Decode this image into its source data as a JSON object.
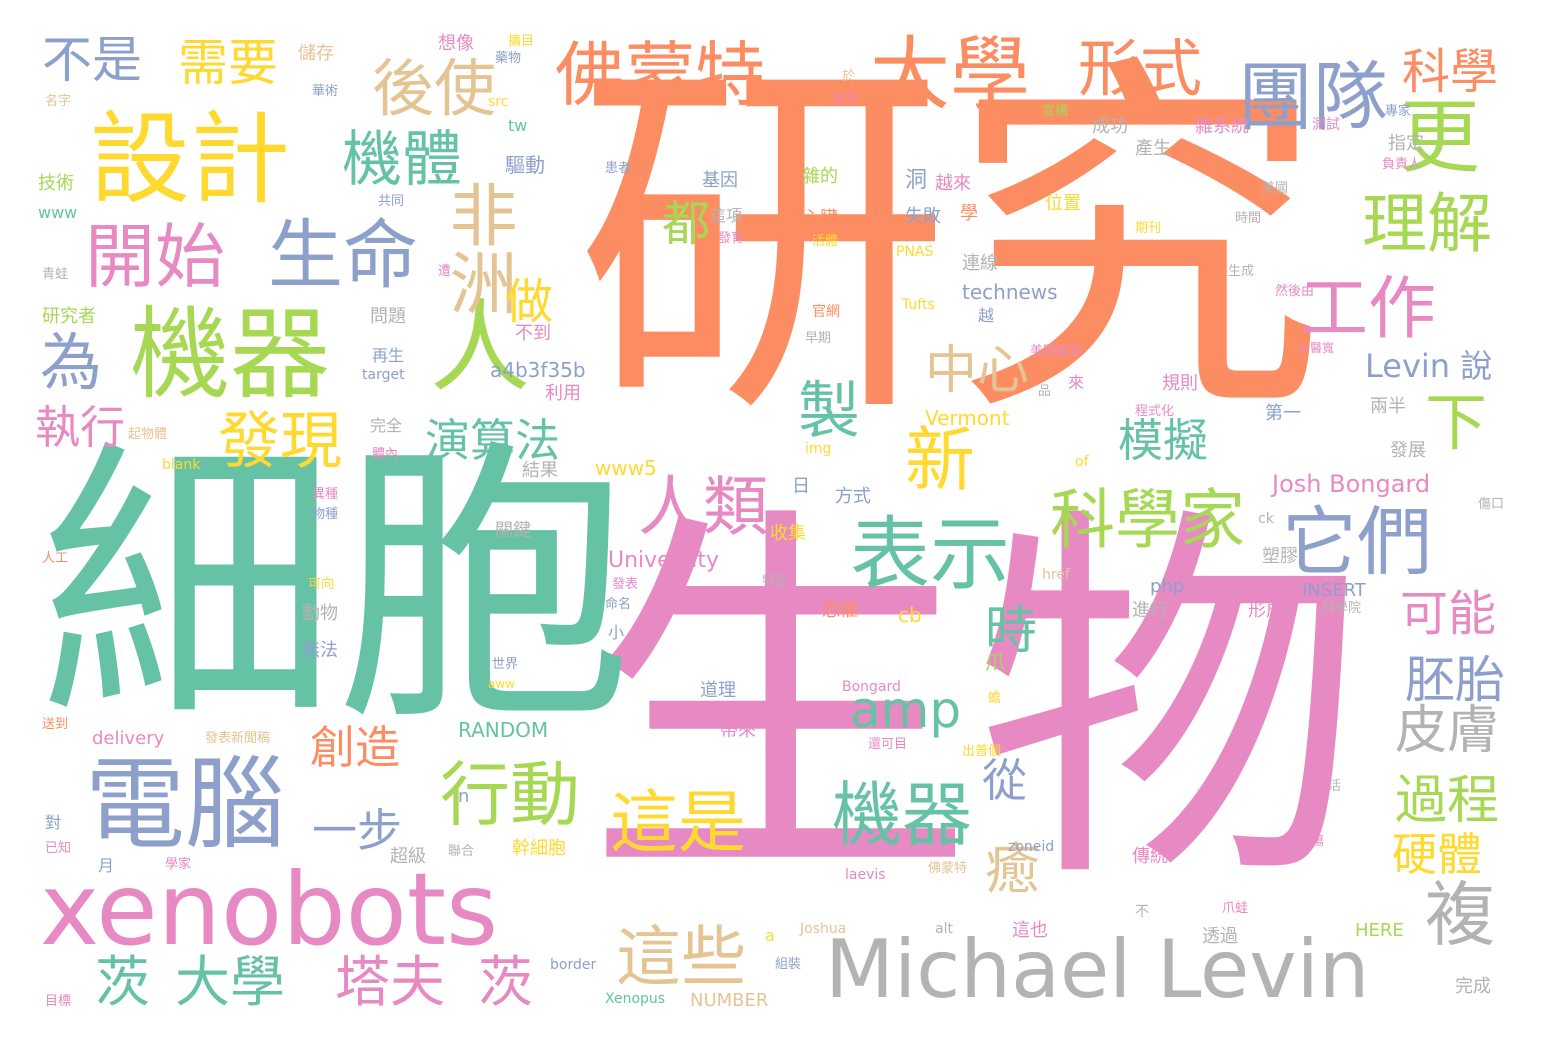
{
  "palette": {
    "orange": "#fc8d62",
    "pink": "#e78ac3",
    "teal": "#66c2a5",
    "blue": "#8da0cb",
    "green": "#a6d854",
    "yellow": "#ffd92f",
    "tan": "#e5c494",
    "gray": "#b3b3b3"
  },
  "words": [
    {
      "text": "研究",
      "color": "orange"
    },
    {
      "text": "生物",
      "color": "pink"
    },
    {
      "text": "細胞",
      "color": "teal"
    },
    {
      "text": "Michael Levin",
      "color": "gray"
    },
    {
      "text": "xenobots",
      "color": "pink"
    },
    {
      "text": "電腦",
      "color": "blue"
    },
    {
      "text": "設計",
      "color": "yellow"
    },
    {
      "text": "機器",
      "color": "green"
    },
    {
      "text": "佛蒙特",
      "color": "orange"
    },
    {
      "text": "大學",
      "color": "orange"
    },
    {
      "text": "人",
      "color": "green"
    },
    {
      "text": "生命",
      "color": "blue"
    },
    {
      "text": "開始",
      "color": "pink"
    },
    {
      "text": "表示",
      "color": "teal"
    },
    {
      "text": "科學家",
      "color": "green"
    },
    {
      "text": "它們",
      "color": "blue"
    },
    {
      "text": "團隊",
      "color": "blue"
    },
    {
      "text": "形式",
      "color": "orange"
    },
    {
      "text": "機體",
      "color": "teal"
    },
    {
      "text": "後使",
      "color": "tan"
    },
    {
      "text": "更",
      "color": "green"
    },
    {
      "text": "理解",
      "color": "green"
    },
    {
      "text": "工作",
      "color": "pink"
    },
    {
      "text": "行動",
      "color": "green"
    },
    {
      "text": "機器",
      "color": "teal"
    },
    {
      "text": "這是",
      "color": "yellow"
    },
    {
      "text": "這些",
      "color": "tan"
    },
    {
      "text": "人類",
      "color": "pink"
    },
    {
      "text": "非洲",
      "color": "tan"
    },
    {
      "text": "為",
      "color": "blue"
    },
    {
      "text": "發現",
      "color": "yellow"
    },
    {
      "text": "新",
      "color": "yellow"
    },
    {
      "text": "複",
      "color": "gray"
    },
    {
      "text": "皮膚",
      "color": "gray"
    },
    {
      "text": "過程",
      "color": "green"
    },
    {
      "text": "amp",
      "color": "teal"
    },
    {
      "text": "茨",
      "color": "teal"
    },
    {
      "text": "大學",
      "color": "teal"
    },
    {
      "text": "塔夫",
      "color": "pink"
    },
    {
      "text": "茨",
      "color": "pink"
    },
    {
      "text": "需要",
      "color": "yellow"
    },
    {
      "text": "不是",
      "color": "blue"
    },
    {
      "text": "科學",
      "color": "orange"
    },
    {
      "text": "下",
      "color": "green"
    },
    {
      "text": "中心",
      "color": "tan"
    },
    {
      "text": "模擬",
      "color": "teal"
    },
    {
      "text": "演算法",
      "color": "teal"
    },
    {
      "text": "創造",
      "color": "orange"
    },
    {
      "text": "一步",
      "color": "blue"
    },
    {
      "text": "執行",
      "color": "pink"
    },
    {
      "text": "製",
      "color": "teal"
    },
    {
      "text": "做",
      "color": "yellow"
    },
    {
      "text": "都",
      "color": "green"
    },
    {
      "text": "時",
      "color": "teal"
    },
    {
      "text": "可能",
      "color": "pink"
    },
    {
      "text": "胚胎",
      "color": "blue"
    },
    {
      "text": "硬體",
      "color": "yellow"
    },
    {
      "text": "從",
      "color": "blue"
    },
    {
      "text": "癒",
      "color": "tan"
    },
    {
      "text": "Levin 說",
      "color": "blue"
    },
    {
      "text": "Josh Bongard",
      "color": "pink"
    },
    {
      "text": "University",
      "color": "pink"
    },
    {
      "text": "technews",
      "color": "blue"
    },
    {
      "text": "Vermont",
      "color": "yellow"
    },
    {
      "text": "RANDOM",
      "color": "teal"
    },
    {
      "text": "delivery",
      "color": "pink"
    },
    {
      "text": "www5",
      "color": "yellow"
    },
    {
      "text": "a4b3f35b",
      "color": "blue"
    },
    {
      "text": "INSERT",
      "color": "blue"
    },
    {
      "text": "NUMBER",
      "color": "tan"
    },
    {
      "text": "HERE",
      "color": "green"
    },
    {
      "text": "Xenopus",
      "color": "teal"
    },
    {
      "text": "儲存",
      "color": "tan"
    },
    {
      "text": "想像",
      "color": "pink"
    },
    {
      "text": "成功",
      "color": "gray"
    },
    {
      "text": "驅動",
      "color": "blue"
    },
    {
      "text": "基因",
      "color": "blue"
    },
    {
      "text": "雜的",
      "color": "green"
    },
    {
      "text": "洞",
      "color": "blue"
    },
    {
      "text": "越來",
      "color": "pink"
    },
    {
      "text": "學",
      "color": "orange"
    },
    {
      "text": "產生",
      "color": "gray"
    },
    {
      "text": "雜系統",
      "color": "pink"
    },
    {
      "text": "測試",
      "color": "pink"
    },
    {
      "text": "指定",
      "color": "gray"
    },
    {
      "text": "這項",
      "color": "gray"
    },
    {
      "text": "心臟",
      "color": "orange"
    },
    {
      "text": "失敗",
      "color": "blue"
    },
    {
      "text": "位置",
      "color": "yellow"
    },
    {
      "text": "連線",
      "color": "gray"
    },
    {
      "text": "問題",
      "color": "gray"
    },
    {
      "text": "研究者",
      "color": "green"
    },
    {
      "text": "技術",
      "color": "green"
    },
    {
      "text": "再生",
      "color": "blue"
    },
    {
      "text": "完全",
      "color": "gray"
    },
    {
      "text": "不到",
      "color": "pink"
    },
    {
      "text": "利用",
      "color": "pink"
    },
    {
      "text": "規則",
      "color": "pink"
    },
    {
      "text": "第一",
      "color": "blue"
    },
    {
      "text": "兩半",
      "color": "gray"
    },
    {
      "text": "結果",
      "color": "gray"
    },
    {
      "text": "方式",
      "color": "blue"
    },
    {
      "text": "收集",
      "color": "yellow"
    },
    {
      "text": "日",
      "color": "blue"
    },
    {
      "text": "關鍵",
      "color": "gray"
    },
    {
      "text": "塑膠",
      "color": "gray"
    },
    {
      "text": "發展",
      "color": "gray"
    },
    {
      "text": "動物",
      "color": "gray"
    },
    {
      "text": "無法",
      "color": "blue"
    },
    {
      "text": "恐懼",
      "color": "orange"
    },
    {
      "text": "進行",
      "color": "gray"
    },
    {
      "text": "形成",
      "color": "pink"
    },
    {
      "text": "小",
      "color": "blue"
    },
    {
      "text": "道理",
      "color": "blue"
    },
    {
      "text": "幹細胞",
      "color": "yellow"
    },
    {
      "text": "傳統",
      "color": "pink"
    },
    {
      "text": "超級",
      "color": "gray"
    },
    {
      "text": "帶來",
      "color": "pink"
    },
    {
      "text": "透過",
      "color": "gray"
    },
    {
      "text": "這也",
      "color": "pink"
    },
    {
      "text": "爪",
      "color": "green"
    },
    {
      "text": "完成",
      "color": "gray"
    },
    {
      "text": "php",
      "color": "blue"
    },
    {
      "text": "cb",
      "color": "yellow"
    },
    {
      "text": "tw",
      "color": "teal"
    },
    {
      "text": "src",
      "color": "yellow"
    },
    {
      "text": "www",
      "color": "teal"
    },
    {
      "text": "blank",
      "color": "yellow"
    },
    {
      "text": "target",
      "color": "blue"
    },
    {
      "text": "img",
      "color": "yellow"
    },
    {
      "text": "of",
      "color": "yellow"
    },
    {
      "text": "href",
      "color": "tan"
    },
    {
      "text": "ck",
      "color": "gray"
    },
    {
      "text": "alt",
      "color": "gray"
    },
    {
      "text": "a",
      "color": "yellow"
    },
    {
      "text": "n",
      "color": "blue"
    },
    {
      "text": "aww",
      "color": "yellow"
    },
    {
      "text": "Bongard",
      "color": "pink"
    },
    {
      "text": "zoneid",
      "color": "blue"
    },
    {
      "text": "laevis",
      "color": "pink"
    },
    {
      "text": "Joshua",
      "color": "tan"
    },
    {
      "text": "border",
      "color": "blue"
    },
    {
      "text": "PNAS",
      "color": "yellow"
    },
    {
      "text": "Tufts",
      "color": "yellow"
    },
    {
      "text": "名字",
      "color": "tan"
    },
    {
      "text": "藥物",
      "color": "blue"
    },
    {
      "text": "於",
      "color": "tan"
    },
    {
      "text": "華術",
      "color": "blue"
    },
    {
      "text": "主任",
      "color": "pink"
    },
    {
      "text": "宣構",
      "color": "green"
    },
    {
      "text": "專家",
      "color": "blue"
    },
    {
      "text": "負責人",
      "color": "pink"
    },
    {
      "text": "美國",
      "color": "gray"
    },
    {
      "text": "時間",
      "color": "gray"
    },
    {
      "text": "期刊",
      "color": "yellow"
    },
    {
      "text": "生成",
      "color": "gray"
    },
    {
      "text": "然後由",
      "color": "pink"
    },
    {
      "text": "公醫寬",
      "color": "pink"
    },
    {
      "text": "美國國家",
      "color": "pink"
    },
    {
      "text": "官網",
      "color": "orange"
    },
    {
      "text": "早期",
      "color": "gray"
    },
    {
      "text": "程式化",
      "color": "pink"
    },
    {
      "text": "活體",
      "color": "yellow"
    },
    {
      "text": "發育",
      "color": "pink"
    },
    {
      "text": "共同",
      "color": "blue"
    },
    {
      "text": "青蛙",
      "color": "gray"
    },
    {
      "text": "患者",
      "color": "blue"
    },
    {
      "text": "遭",
      "color": "pink"
    },
    {
      "text": "越",
      "color": "blue"
    },
    {
      "text": "來",
      "color": "pink"
    },
    {
      "text": "品",
      "color": "gray"
    },
    {
      "text": "起物體",
      "color": "tan"
    },
    {
      "text": "體內",
      "color": "pink"
    },
    {
      "text": "異種",
      "color": "pink"
    },
    {
      "text": "物種",
      "color": "blue"
    },
    {
      "text": "人工",
      "color": "orange"
    },
    {
      "text": "可向",
      "color": "yellow"
    },
    {
      "text": "發表",
      "color": "pink"
    },
    {
      "text": "命名",
      "color": "blue"
    },
    {
      "text": "特定",
      "color": "gray"
    },
    {
      "text": "院刊",
      "color": "pink"
    },
    {
      "text": "科學院",
      "color": "gray"
    },
    {
      "text": "世界",
      "color": "blue"
    },
    {
      "text": "發表新聞稿",
      "color": "tan"
    },
    {
      "text": "送到",
      "color": "orange"
    },
    {
      "text": "對",
      "color": "blue"
    },
    {
      "text": "已知",
      "color": "pink"
    },
    {
      "text": "月",
      "color": "blue"
    },
    {
      "text": "學家",
      "color": "pink"
    },
    {
      "text": "聯合",
      "color": "gray"
    },
    {
      "text": "目標",
      "color": "pink"
    },
    {
      "text": "還可目",
      "color": "pink"
    },
    {
      "text": "出普個",
      "color": "yellow"
    },
    {
      "text": "蟾",
      "color": "yellow"
    },
    {
      "text": "組裝",
      "color": "blue"
    },
    {
      "text": "佛蒙特",
      "color": "tan"
    },
    {
      "text": "爪蛙",
      "color": "pink"
    },
    {
      "text": "不",
      "color": "gray"
    },
    {
      "text": "受傷",
      "color": "pink"
    },
    {
      "text": "活",
      "color": "gray"
    },
    {
      "text": "傷口",
      "color": "gray"
    },
    {
      "text": "擴目",
      "color": "yellow"
    }
  ]
}
